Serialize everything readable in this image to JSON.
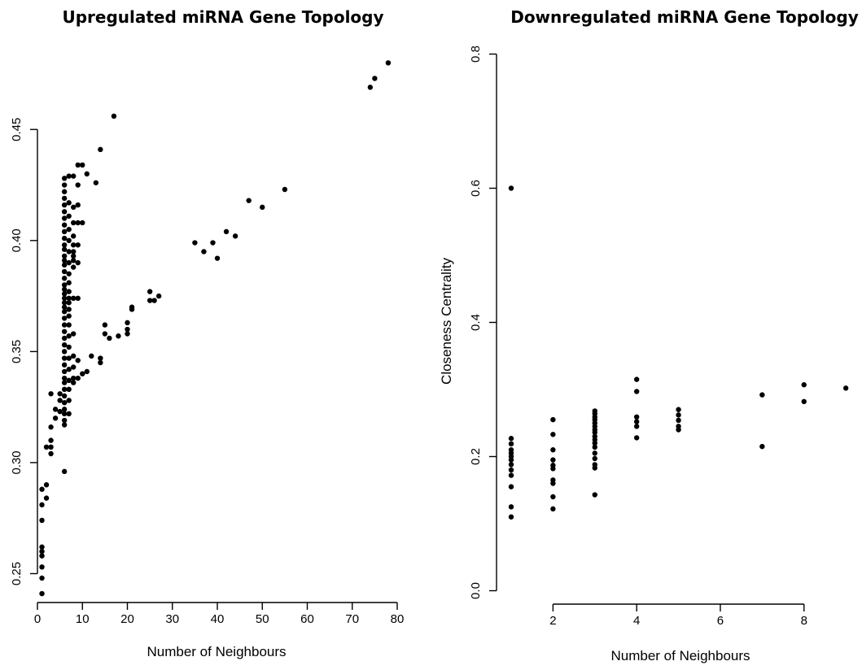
{
  "chart_data": [
    {
      "type": "scatter",
      "title": "Upregulated miRNA Gene Topology",
      "xlabel": "Number of Neighbours",
      "ylabel": "",
      "xlim": [
        0,
        80
      ],
      "ylim": [
        0.237,
        0.49
      ],
      "x_ticks": [
        0,
        10,
        20,
        30,
        40,
        50,
        60,
        70,
        80
      ],
      "y_ticks": [
        0.25,
        0.3,
        0.35,
        0.4,
        0.45
      ],
      "y_tick_labels": [
        "0.25",
        "0.30",
        "0.35",
        "0.40",
        "0.45"
      ],
      "grid": false,
      "series": [
        {
          "points": [
            [
              1,
              0.241
            ],
            [
              1,
              0.248
            ],
            [
              1,
              0.253
            ],
            [
              1,
              0.258
            ],
            [
              1,
              0.26
            ],
            [
              1,
              0.262
            ],
            [
              1,
              0.274
            ],
            [
              1,
              0.281
            ],
            [
              1,
              0.288
            ],
            [
              2,
              0.284
            ],
            [
              2,
              0.29
            ],
            [
              2,
              0.307
            ],
            [
              3,
              0.304
            ],
            [
              3,
              0.307
            ],
            [
              3,
              0.31
            ],
            [
              3,
              0.316
            ],
            [
              3,
              0.331
            ],
            [
              4,
              0.32
            ],
            [
              4,
              0.324
            ],
            [
              5,
              0.323
            ],
            [
              5,
              0.328
            ],
            [
              5,
              0.331
            ],
            [
              6,
              0.296
            ],
            [
              6,
              0.317
            ],
            [
              6,
              0.319
            ],
            [
              6,
              0.322
            ],
            [
              6,
              0.324
            ],
            [
              6,
              0.327
            ],
            [
              6,
              0.33
            ],
            [
              6,
              0.333
            ],
            [
              6,
              0.336
            ],
            [
              6,
              0.338
            ],
            [
              6,
              0.341
            ],
            [
              6,
              0.344
            ],
            [
              6,
              0.347
            ],
            [
              6,
              0.35
            ],
            [
              6,
              0.353
            ],
            [
              6,
              0.356
            ],
            [
              6,
              0.359
            ],
            [
              6,
              0.362
            ],
            [
              6,
              0.365
            ],
            [
              6,
              0.368
            ],
            [
              6,
              0.37
            ],
            [
              6,
              0.372
            ],
            [
              6,
              0.374
            ],
            [
              6,
              0.376
            ],
            [
              6,
              0.378
            ],
            [
              6,
              0.38
            ],
            [
              6,
              0.383
            ],
            [
              6,
              0.386
            ],
            [
              6,
              0.389
            ],
            [
              6,
              0.391
            ],
            [
              6,
              0.393
            ],
            [
              6,
              0.396
            ],
            [
              6,
              0.398
            ],
            [
              6,
              0.401
            ],
            [
              6,
              0.404
            ],
            [
              6,
              0.407
            ],
            [
              6,
              0.41
            ],
            [
              6,
              0.413
            ],
            [
              6,
              0.416
            ],
            [
              6,
              0.419
            ],
            [
              6,
              0.422
            ],
            [
              6,
              0.425
            ],
            [
              6,
              0.428
            ],
            [
              7,
              0.322
            ],
            [
              7,
              0.328
            ],
            [
              7,
              0.333
            ],
            [
              7,
              0.337
            ],
            [
              7,
              0.342
            ],
            [
              7,
              0.347
            ],
            [
              7,
              0.352
            ],
            [
              7,
              0.357
            ],
            [
              7,
              0.362
            ],
            [
              7,
              0.366
            ],
            [
              7,
              0.369
            ],
            [
              7,
              0.372
            ],
            [
              7,
              0.374
            ],
            [
              7,
              0.377
            ],
            [
              7,
              0.381
            ],
            [
              7,
              0.385
            ],
            [
              7,
              0.39
            ],
            [
              7,
              0.395
            ],
            [
              7,
              0.4
            ],
            [
              7,
              0.405
            ],
            [
              7,
              0.411
            ],
            [
              7,
              0.417
            ],
            [
              7,
              0.429
            ],
            [
              8,
              0.336
            ],
            [
              8,
              0.338
            ],
            [
              8,
              0.343
            ],
            [
              8,
              0.348
            ],
            [
              8,
              0.358
            ],
            [
              8,
              0.374
            ],
            [
              8,
              0.388
            ],
            [
              8,
              0.391
            ],
            [
              8,
              0.393
            ],
            [
              8,
              0.395
            ],
            [
              8,
              0.398
            ],
            [
              8,
              0.402
            ],
            [
              8,
              0.408
            ],
            [
              8,
              0.415
            ],
            [
              8,
              0.429
            ],
            [
              9,
              0.338
            ],
            [
              9,
              0.346
            ],
            [
              9,
              0.374
            ],
            [
              9,
              0.39
            ],
            [
              9,
              0.398
            ],
            [
              9,
              0.408
            ],
            [
              9,
              0.416
            ],
            [
              9,
              0.425
            ],
            [
              9,
              0.434
            ],
            [
              10,
              0.34
            ],
            [
              10,
              0.408
            ],
            [
              10,
              0.434
            ],
            [
              11,
              0.341
            ],
            [
              11,
              0.43
            ],
            [
              12,
              0.348
            ],
            [
              13,
              0.426
            ],
            [
              14,
              0.345
            ],
            [
              14,
              0.347
            ],
            [
              14,
              0.441
            ],
            [
              15,
              0.358
            ],
            [
              15,
              0.362
            ],
            [
              16,
              0.356
            ],
            [
              17,
              0.456
            ],
            [
              18,
              0.357
            ],
            [
              20,
              0.358
            ],
            [
              20,
              0.36
            ],
            [
              20,
              0.363
            ],
            [
              21,
              0.369
            ],
            [
              21,
              0.37
            ],
            [
              25,
              0.373
            ],
            [
              25,
              0.377
            ],
            [
              26,
              0.373
            ],
            [
              27,
              0.375
            ],
            [
              35,
              0.399
            ],
            [
              37,
              0.395
            ],
            [
              39,
              0.399
            ],
            [
              40,
              0.392
            ],
            [
              42,
              0.404
            ],
            [
              44,
              0.402
            ],
            [
              47,
              0.418
            ],
            [
              50,
              0.415
            ],
            [
              55,
              0.423
            ],
            [
              74,
              0.469
            ],
            [
              75,
              0.473
            ],
            [
              78,
              0.48
            ]
          ]
        }
      ]
    },
    {
      "type": "scatter",
      "title": "Downregulated miRNA Gene Topology",
      "xlabel": "Number of Neighbours",
      "ylabel": "Closeness Centrality",
      "xlim": [
        0.65,
        9.25
      ],
      "ylim": [
        -0.02,
        0.82
      ],
      "x_ticks": [
        2,
        4,
        6,
        8
      ],
      "y_ticks": [
        0.0,
        0.2,
        0.4,
        0.6,
        0.8
      ],
      "y_tick_labels": [
        "0.0",
        "0.2",
        "0.4",
        "0.6",
        "0.8"
      ],
      "grid": false,
      "series": [
        {
          "points": [
            [
              1,
              0.6
            ],
            [
              1,
              0.227
            ],
            [
              1,
              0.219
            ],
            [
              1,
              0.21
            ],
            [
              1,
              0.205
            ],
            [
              1,
              0.2
            ],
            [
              1,
              0.195
            ],
            [
              1,
              0.188
            ],
            [
              1,
              0.18
            ],
            [
              1,
              0.172
            ],
            [
              1,
              0.155
            ],
            [
              1,
              0.125
            ],
            [
              1,
              0.11
            ],
            [
              2,
              0.255
            ],
            [
              2,
              0.233
            ],
            [
              2,
              0.21
            ],
            [
              2,
              0.195
            ],
            [
              2,
              0.187
            ],
            [
              2,
              0.182
            ],
            [
              2,
              0.165
            ],
            [
              2,
              0.16
            ],
            [
              2,
              0.14
            ],
            [
              2,
              0.122
            ],
            [
              3,
              0.268
            ],
            [
              3,
              0.264
            ],
            [
              3,
              0.259
            ],
            [
              3,
              0.255
            ],
            [
              3,
              0.25
            ],
            [
              3,
              0.245
            ],
            [
              3,
              0.24
            ],
            [
              3,
              0.236
            ],
            [
              3,
              0.23
            ],
            [
              3,
              0.225
            ],
            [
              3,
              0.22
            ],
            [
              3,
              0.214
            ],
            [
              3,
              0.205
            ],
            [
              3,
              0.197
            ],
            [
              3,
              0.188
            ],
            [
              3,
              0.183
            ],
            [
              3,
              0.143
            ],
            [
              4,
              0.315
            ],
            [
              4,
              0.297
            ],
            [
              4,
              0.259
            ],
            [
              4,
              0.252
            ],
            [
              4,
              0.245
            ],
            [
              4,
              0.228
            ],
            [
              5,
              0.27
            ],
            [
              5,
              0.262
            ],
            [
              5,
              0.254
            ],
            [
              5,
              0.245
            ],
            [
              5,
              0.24
            ],
            [
              7,
              0.292
            ],
            [
              7,
              0.215
            ],
            [
              8,
              0.307
            ],
            [
              8,
              0.282
            ],
            [
              9,
              0.302
            ]
          ]
        }
      ]
    }
  ]
}
